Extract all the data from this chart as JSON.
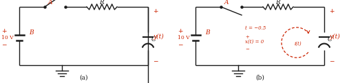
{
  "fig_width": 5.07,
  "fig_height": 1.21,
  "dpi": 100,
  "bg_color": "#ffffff",
  "circuit_color": "#1a1a1a",
  "red_color": "#cc2200",
  "label_a": "A",
  "label_b": "B",
  "label_r": "R",
  "label_c": "C",
  "label_10v": "10 V",
  "label_yt": "y(t)",
  "label_a_caption": "(a)",
  "label_b_caption": "(b)",
  "label_t": "t = −0.5",
  "label_xt": "x(t) = 0",
  "label_it": "i(t)"
}
